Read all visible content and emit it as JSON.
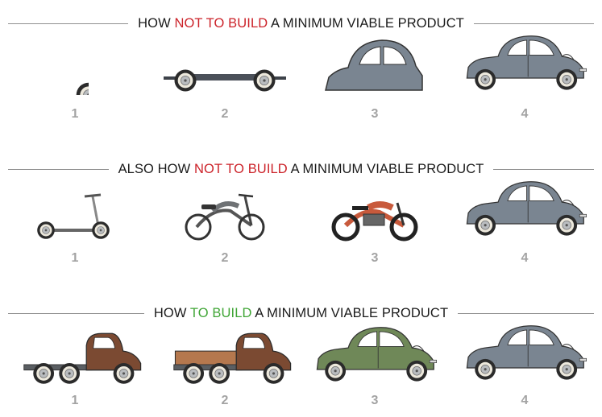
{
  "rows": [
    {
      "title_pre": "HOW ",
      "title_highlight": "NOT TO BUILD",
      "title_post": " A MINIMUM VIABLE PRODUCT",
      "highlight_color": "#cc2229",
      "steps": [
        {
          "number": "1",
          "illustration": "wheel"
        },
        {
          "number": "2",
          "illustration": "axle-chassis"
        },
        {
          "number": "3",
          "illustration": "car-body-shell"
        },
        {
          "number": "4",
          "illustration": "complete-car"
        }
      ]
    },
    {
      "title_pre": "ALSO HOW ",
      "title_highlight": "NOT TO BUILD",
      "title_post": " A MINIMUM VIABLE PRODUCT",
      "highlight_color": "#cc2229",
      "steps": [
        {
          "number": "1",
          "illustration": "kick-scooter"
        },
        {
          "number": "2",
          "illustration": "moped"
        },
        {
          "number": "3",
          "illustration": "motorcycle"
        },
        {
          "number": "4",
          "illustration": "complete-car"
        }
      ]
    },
    {
      "title_pre": "HOW ",
      "title_highlight": "TO BUILD",
      "title_post": " A MINIMUM VIABLE PRODUCT",
      "highlight_color": "#3fa535",
      "steps": [
        {
          "number": "1",
          "illustration": "flatbed-truck"
        },
        {
          "number": "2",
          "illustration": "pickup-truck"
        },
        {
          "number": "3",
          "illustration": "green-car"
        },
        {
          "number": "4",
          "illustration": "complete-car"
        }
      ]
    }
  ],
  "colors": {
    "car_grey": "#7a8591",
    "rust_brown": "#7b4a32",
    "wood_bed": "#b5784e",
    "green_car": "#6f8858",
    "motorcycle_red": "#c85a3c",
    "number_grey": "#a3a3a3"
  }
}
